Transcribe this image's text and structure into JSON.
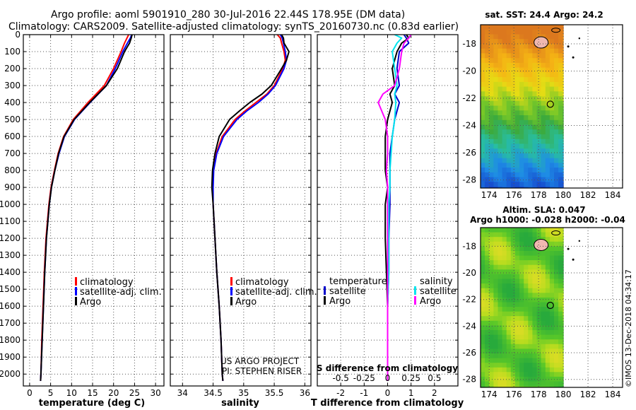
{
  "header": {
    "line1": "Argo profile: aoml 5901910_280 30-Jul-2016 22.44S 178.95E (DM data)",
    "line2": "Climatology: CARS2009. Satellite-adjusted climatology: synTS_20160730.nc (0.83d earlier)"
  },
  "credits": {
    "project": "US ARGO PROJECT",
    "pi": "PI: STEPHEN RISER",
    "imos": "©IMOS 13-Dec-2018 04:34:17"
  },
  "colors": {
    "climatology": "#ff0000",
    "satellite": "#0000ff",
    "argo": "#000000",
    "sat_t": "#0000cc",
    "sat_s": "#00e5ee",
    "argo_s": "#ff00ff"
  },
  "depth_axis": {
    "ticks": [
      0,
      100,
      200,
      300,
      400,
      500,
      600,
      700,
      800,
      900,
      1000,
      1100,
      1200,
      1300,
      1400,
      1500,
      1600,
      1700,
      1800,
      1900,
      2000
    ],
    "range": [
      0,
      2070
    ]
  },
  "chart_data": [
    {
      "id": "temperature",
      "type": "line",
      "xlabel": "temperature (deg C)",
      "xlim": [
        -1.5,
        32
      ],
      "xticks": [
        0,
        5,
        10,
        15,
        20,
        25,
        30
      ],
      "legend": [
        "climatology",
        "satellite-adj. clim.",
        "Argo"
      ],
      "depth": [
        0,
        20,
        50,
        100,
        200,
        300,
        400,
        500,
        600,
        700,
        800,
        900,
        1000,
        1200,
        1400,
        1600,
        1800,
        2000,
        2040
      ],
      "series": [
        {
          "name": "climatology",
          "color": "#ff0000",
          "values": [
            23.6,
            23.2,
            22.6,
            21.8,
            20.0,
            17.8,
            13.9,
            10.4,
            8.1,
            6.8,
            5.9,
            5.1,
            4.6,
            3.9,
            3.5,
            3.2,
            2.9,
            2.7,
            2.6
          ]
        },
        {
          "name": "satellite-adj. clim.",
          "color": "#0000ff",
          "values": [
            24.3,
            24.0,
            23.3,
            22.2,
            20.4,
            18.3,
            14.4,
            10.7,
            8.3,
            7.0,
            6.0,
            5.2,
            4.7,
            4.0,
            3.6,
            3.3,
            3.0,
            2.7,
            2.6
          ]
        },
        {
          "name": "Argo",
          "color": "#000000",
          "values": [
            24.4,
            24.2,
            23.8,
            22.6,
            20.9,
            18.3,
            14.3,
            10.6,
            8.2,
            6.9,
            6.0,
            5.2,
            4.7,
            4.0,
            3.6,
            3.3,
            3.0,
            2.7,
            2.6
          ]
        }
      ]
    },
    {
      "id": "salinity",
      "type": "line",
      "xlabel": "salinity",
      "xlim": [
        33.8,
        36.1
      ],
      "xticks": [
        34,
        34.5,
        35,
        35.5,
        36
      ],
      "xticklabels": [
        "34",
        "34.5",
        "35",
        "35.5",
        "36"
      ],
      "legend": [
        "climatology",
        "satellite-adj. clim.",
        "Argo"
      ],
      "depth": [
        0,
        20,
        50,
        100,
        150,
        200,
        300,
        350,
        400,
        450,
        500,
        600,
        700,
        800,
        900,
        1000,
        1200,
        1400,
        1600,
        1800,
        2000,
        2040
      ],
      "series": [
        {
          "name": "climatology",
          "color": "#ff0000",
          "values": [
            35.55,
            35.6,
            35.62,
            35.66,
            35.68,
            35.64,
            35.5,
            35.38,
            35.2,
            35.02,
            34.86,
            34.65,
            34.55,
            34.5,
            34.49,
            34.5,
            34.53,
            34.56,
            34.6,
            34.63,
            34.65,
            34.66
          ]
        },
        {
          "name": "satellite-adj. clim.",
          "color": "#0000ff",
          "values": [
            35.6,
            35.63,
            35.65,
            35.68,
            35.7,
            35.66,
            35.52,
            35.4,
            35.24,
            35.05,
            34.89,
            34.67,
            34.56,
            34.51,
            34.5,
            34.5,
            34.53,
            34.56,
            34.6,
            34.63,
            34.65,
            34.66
          ]
        },
        {
          "name": "Argo",
          "color": "#000000",
          "values": [
            35.62,
            35.65,
            35.66,
            35.74,
            35.7,
            35.62,
            35.45,
            35.3,
            35.1,
            34.93,
            34.77,
            34.6,
            34.53,
            34.49,
            34.48,
            34.5,
            34.53,
            34.56,
            34.6,
            34.63,
            34.65,
            34.66
          ]
        }
      ]
    },
    {
      "id": "difference",
      "type": "line",
      "xlabel": "T difference from climatology",
      "xlabel2": "S difference from climatology",
      "xlim": [
        -3,
        3
      ],
      "xticks": [
        -2,
        -1,
        0,
        1,
        2
      ],
      "xticks2": [
        -0.5,
        -0.25,
        0,
        0.25,
        0.5
      ],
      "xticklabels2": [
        "-0.5",
        "-0.25",
        "0",
        "0.25",
        "0.5"
      ],
      "legend_t": {
        "title": "temperature",
        "items": [
          "satellite",
          "Argo"
        ]
      },
      "legend_s": {
        "title": "salinity",
        "items": [
          "satellite",
          "Argo"
        ]
      },
      "depth": [
        0,
        20,
        50,
        100,
        200,
        300,
        350,
        400,
        500,
        600,
        700,
        800,
        900,
        1000,
        1200,
        1400,
        1600,
        1800,
        2000,
        2040
      ],
      "series": [
        {
          "name": "temperature satellite",
          "color": "#0000cc",
          "values": [
            0.7,
            0.8,
            0.9,
            0.5,
            0.4,
            0.5,
            0.3,
            0.5,
            0.3,
            0.2,
            0.1,
            0.1,
            0.1,
            0.1,
            0.05,
            0.05,
            0.0,
            0.0,
            0.0,
            0.0
          ]
        },
        {
          "name": "temperature Argo",
          "color": "#000000",
          "values": [
            0.8,
            0.9,
            0.6,
            0.4,
            0.2,
            0.3,
            0.1,
            0.2,
            0.0,
            -0.1,
            -0.1,
            -0.1,
            0.0,
            -0.1,
            -0.1,
            -0.05,
            0.0,
            0.0,
            0.0,
            0.0
          ]
        },
        {
          "name": "salinity satellite",
          "color": "#00e5ee",
          "values": [
            0.3,
            0.6,
            0.4,
            0.2,
            0.3,
            0.4,
            0.3,
            0.35,
            0.3,
            0.2,
            0.15,
            0.1,
            0.1,
            0.05,
            0.05,
            0.05,
            0.0,
            0.0,
            0.0,
            0.0
          ]
        },
        {
          "name": "salinity Argo",
          "color": "#ff00ff",
          "values": [
            1.0,
            0.9,
            0.7,
            0.6,
            0.5,
            0.3,
            -0.2,
            -0.4,
            -0.1,
            0.0,
            0.0,
            -0.05,
            0.0,
            0.0,
            0.0,
            0.0,
            0.0,
            0.0,
            0.0,
            0.0
          ]
        }
      ]
    },
    {
      "id": "sst_map",
      "type": "heatmap",
      "title": "sat. SST: 24.4  Argo: 24.2",
      "xlim": [
        173.3,
        184.8
      ],
      "ylim": [
        -28.6,
        -16.6
      ],
      "xticks": [
        174,
        176,
        178,
        180,
        182,
        184
      ],
      "yticks": [
        -18,
        -20,
        -22,
        -24,
        -26,
        -28
      ],
      "argo_position": [
        178.95,
        -22.44
      ]
    },
    {
      "id": "sla_map",
      "type": "heatmap",
      "title": "Altim. SLA: 0.047",
      "subtitle": "Argo h1000: -0.028  h2000: -0.04",
      "xlim": [
        173.3,
        184.8
      ],
      "ylim": [
        -28.6,
        -16.6
      ],
      "xticks": [
        174,
        176,
        178,
        180,
        182,
        184
      ],
      "yticks": [
        -18,
        -20,
        -22,
        -24,
        -26,
        -28
      ],
      "argo_position": [
        178.95,
        -22.44
      ]
    }
  ]
}
